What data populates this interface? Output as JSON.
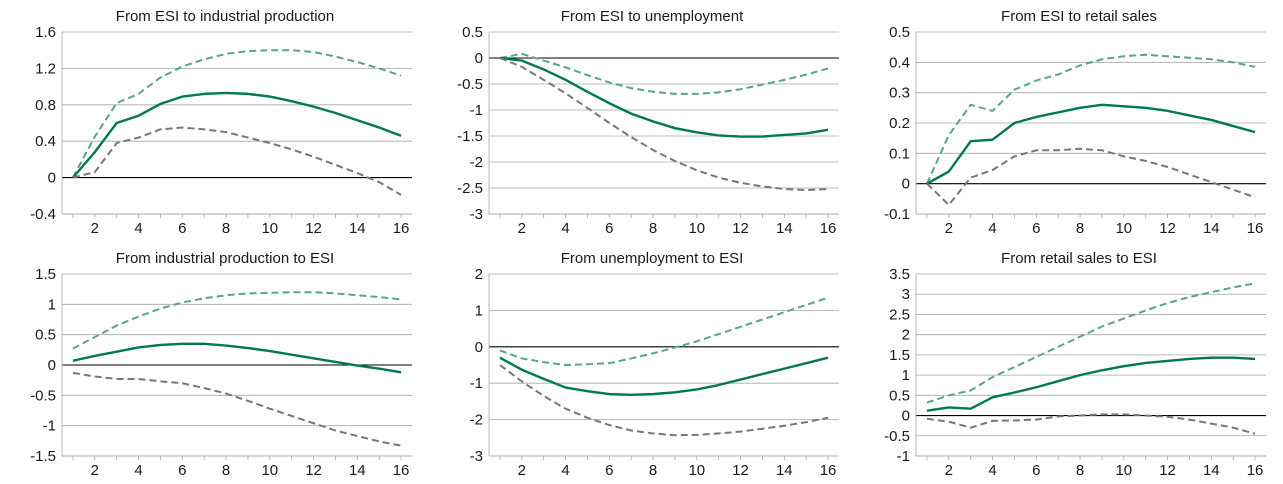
{
  "chart_data": [
    {
      "type": "line",
      "title": "From ESI to industrial production",
      "x": [
        1,
        2,
        3,
        4,
        5,
        6,
        7,
        8,
        9,
        10,
        11,
        12,
        13,
        14,
        15,
        16
      ],
      "ylim": [
        -0.4,
        1.6
      ],
      "yticks": [
        -0.4,
        0,
        0.4,
        0.8,
        1.2,
        1.6
      ],
      "ytick_labels": [
        "-0.4",
        "0",
        "0.4",
        "0.8",
        "1.2",
        "1.6"
      ],
      "xticks": [
        2,
        4,
        6,
        8,
        10,
        12,
        14,
        16
      ],
      "xtick_labels": [
        "2",
        "4",
        "6",
        "8",
        "10",
        "12",
        "14",
        "16"
      ],
      "series": [
        {
          "style": "upper",
          "values": [
            0,
            0.45,
            0.82,
            0.92,
            1.1,
            1.22,
            1.3,
            1.36,
            1.39,
            1.4,
            1.4,
            1.38,
            1.33,
            1.27,
            1.2,
            1.12
          ]
        },
        {
          "style": "central",
          "values": [
            0,
            0.28,
            0.6,
            0.68,
            0.81,
            0.89,
            0.92,
            0.93,
            0.92,
            0.89,
            0.84,
            0.78,
            0.71,
            0.63,
            0.55,
            0.46
          ]
        },
        {
          "style": "lower",
          "values": [
            0,
            0.06,
            0.38,
            0.44,
            0.53,
            0.55,
            0.53,
            0.5,
            0.44,
            0.38,
            0.31,
            0.23,
            0.14,
            0.05,
            -0.05,
            -0.19
          ]
        }
      ]
    },
    {
      "type": "line",
      "title": "From ESI to unemployment",
      "x": [
        1,
        2,
        3,
        4,
        5,
        6,
        7,
        8,
        9,
        10,
        11,
        12,
        13,
        14,
        15,
        16
      ],
      "ylim": [
        -3,
        0.5
      ],
      "yticks": [
        -3,
        -2.5,
        -2,
        -1.5,
        -1,
        -0.5,
        0,
        0.5
      ],
      "ytick_labels": [
        "-3",
        "-2.5",
        "-2",
        "-1.5",
        "-1",
        "-0.5",
        "0",
        "0.5"
      ],
      "xticks": [
        2,
        4,
        6,
        8,
        10,
        12,
        14,
        16
      ],
      "xtick_labels": [
        "2",
        "4",
        "6",
        "8",
        "10",
        "12",
        "14",
        "16"
      ],
      "series": [
        {
          "style": "upper",
          "values": [
            0,
            0.08,
            -0.05,
            -0.18,
            -0.33,
            -0.47,
            -0.58,
            -0.65,
            -0.69,
            -0.69,
            -0.66,
            -0.6,
            -0.51,
            -0.42,
            -0.32,
            -0.2
          ]
        },
        {
          "style": "central",
          "values": [
            0,
            -0.05,
            -0.22,
            -0.42,
            -0.65,
            -0.87,
            -1.07,
            -1.22,
            -1.35,
            -1.43,
            -1.49,
            -1.51,
            -1.51,
            -1.48,
            -1.45,
            -1.38
          ]
        },
        {
          "style": "lower",
          "values": [
            0,
            -0.17,
            -0.42,
            -0.68,
            -0.96,
            -1.25,
            -1.52,
            -1.77,
            -1.98,
            -2.16,
            -2.3,
            -2.4,
            -2.47,
            -2.52,
            -2.54,
            -2.52
          ]
        }
      ]
    },
    {
      "type": "line",
      "title": "From ESI to retail sales",
      "x": [
        1,
        2,
        3,
        4,
        5,
        6,
        7,
        8,
        9,
        10,
        11,
        12,
        13,
        14,
        15,
        16
      ],
      "ylim": [
        -0.1,
        0.5
      ],
      "yticks": [
        -0.1,
        0,
        0.1,
        0.2,
        0.3,
        0.4,
        0.5
      ],
      "ytick_labels": [
        "-0.1",
        "0",
        "0.1",
        "0.2",
        "0.3",
        "0.4",
        "0.5"
      ],
      "xticks": [
        2,
        4,
        6,
        8,
        10,
        12,
        14,
        16
      ],
      "xtick_labels": [
        "2",
        "4",
        "6",
        "8",
        "10",
        "12",
        "14",
        "16"
      ],
      "series": [
        {
          "style": "upper",
          "values": [
            0,
            0.16,
            0.26,
            0.24,
            0.31,
            0.34,
            0.36,
            0.39,
            0.41,
            0.42,
            0.425,
            0.42,
            0.415,
            0.41,
            0.4,
            0.385
          ]
        },
        {
          "style": "central",
          "values": [
            0,
            0.04,
            0.14,
            0.145,
            0.2,
            0.22,
            0.235,
            0.25,
            0.26,
            0.255,
            0.25,
            0.24,
            0.225,
            0.21,
            0.19,
            0.17
          ]
        },
        {
          "style": "lower",
          "values": [
            0,
            -0.07,
            0.02,
            0.045,
            0.09,
            0.11,
            0.11,
            0.115,
            0.11,
            0.09,
            0.075,
            0.055,
            0.03,
            0.005,
            -0.02,
            -0.045
          ]
        }
      ]
    },
    {
      "type": "line",
      "title": "From industrial production to ESI",
      "x": [
        1,
        2,
        3,
        4,
        5,
        6,
        7,
        8,
        9,
        10,
        11,
        12,
        13,
        14,
        15,
        16
      ],
      "ylim": [
        -1.5,
        1.5
      ],
      "yticks": [
        -1.5,
        -1,
        -0.5,
        0,
        0.5,
        1,
        1.5
      ],
      "ytick_labels": [
        "-1.5",
        "-1",
        "-0.5",
        "0",
        "0.5",
        "1",
        "1.5"
      ],
      "xticks": [
        2,
        4,
        6,
        8,
        10,
        12,
        14,
        16
      ],
      "xtick_labels": [
        "2",
        "4",
        "6",
        "8",
        "10",
        "12",
        "14",
        "16"
      ],
      "series": [
        {
          "style": "upper",
          "values": [
            0.27,
            0.46,
            0.65,
            0.8,
            0.93,
            1.03,
            1.1,
            1.15,
            1.18,
            1.19,
            1.2,
            1.2,
            1.18,
            1.15,
            1.12,
            1.08
          ]
        },
        {
          "style": "central",
          "values": [
            0.07,
            0.15,
            0.22,
            0.29,
            0.33,
            0.35,
            0.35,
            0.32,
            0.28,
            0.23,
            0.17,
            0.11,
            0.05,
            -0.01,
            -0.06,
            -0.12
          ]
        },
        {
          "style": "lower",
          "values": [
            -0.13,
            -0.19,
            -0.23,
            -0.23,
            -0.27,
            -0.3,
            -0.38,
            -0.47,
            -0.59,
            -0.72,
            -0.84,
            -0.96,
            -1.08,
            -1.17,
            -1.26,
            -1.33
          ]
        }
      ]
    },
    {
      "type": "line",
      "title": "From unemployment to ESI",
      "x": [
        1,
        2,
        3,
        4,
        5,
        6,
        7,
        8,
        9,
        10,
        11,
        12,
        13,
        14,
        15,
        16
      ],
      "ylim": [
        -3,
        2
      ],
      "yticks": [
        -3,
        -2,
        -1,
        0,
        1,
        2
      ],
      "ytick_labels": [
        "-3",
        "-2",
        "-1",
        "0",
        "1",
        "2"
      ],
      "xticks": [
        2,
        4,
        6,
        8,
        10,
        12,
        14,
        16
      ],
      "xtick_labels": [
        "2",
        "4",
        "6",
        "8",
        "10",
        "12",
        "14",
        "16"
      ],
      "series": [
        {
          "style": "upper",
          "values": [
            -0.1,
            -0.32,
            -0.42,
            -0.5,
            -0.48,
            -0.45,
            -0.32,
            -0.18,
            -0.02,
            0.15,
            0.35,
            0.55,
            0.75,
            0.95,
            1.15,
            1.35
          ]
        },
        {
          "style": "central",
          "values": [
            -0.3,
            -0.63,
            -0.88,
            -1.12,
            -1.22,
            -1.3,
            -1.32,
            -1.3,
            -1.25,
            -1.17,
            -1.05,
            -0.9,
            -0.75,
            -0.6,
            -0.45,
            -0.3
          ]
        },
        {
          "style": "lower",
          "values": [
            -0.5,
            -0.95,
            -1.35,
            -1.7,
            -1.95,
            -2.15,
            -2.3,
            -2.38,
            -2.43,
            -2.42,
            -2.38,
            -2.33,
            -2.25,
            -2.17,
            -2.07,
            -1.95
          ]
        }
      ]
    },
    {
      "type": "line",
      "title": "From retail sales to ESI",
      "x": [
        1,
        2,
        3,
        4,
        5,
        6,
        7,
        8,
        9,
        10,
        11,
        12,
        13,
        14,
        15,
        16
      ],
      "ylim": [
        -1,
        3.5
      ],
      "yticks": [
        -1,
        -0.5,
        0,
        0.5,
        1,
        1.5,
        2,
        2.5,
        3,
        3.5
      ],
      "ytick_labels": [
        "-1",
        "-0.5",
        "0",
        "0.5",
        "1",
        "1.5",
        "2",
        "2.5",
        "3",
        "3.5"
      ],
      "xticks": [
        2,
        4,
        6,
        8,
        10,
        12,
        14,
        16
      ],
      "xtick_labels": [
        "2",
        "4",
        "6",
        "8",
        "10",
        "12",
        "14",
        "16"
      ],
      "series": [
        {
          "style": "upper",
          "values": [
            0.32,
            0.5,
            0.62,
            0.95,
            1.2,
            1.45,
            1.7,
            1.95,
            2.2,
            2.4,
            2.6,
            2.78,
            2.93,
            3.05,
            3.17,
            3.27
          ]
        },
        {
          "style": "central",
          "values": [
            0.12,
            0.2,
            0.17,
            0.45,
            0.57,
            0.7,
            0.85,
            1.0,
            1.12,
            1.22,
            1.3,
            1.35,
            1.4,
            1.43,
            1.43,
            1.4
          ]
        },
        {
          "style": "lower",
          "values": [
            -0.08,
            -0.15,
            -0.3,
            -0.13,
            -0.12,
            -0.1,
            -0.02,
            0.0,
            0.03,
            0.03,
            0.0,
            -0.03,
            -0.1,
            -0.2,
            -0.3,
            -0.45
          ]
        }
      ]
    }
  ],
  "colors": {
    "central": "#007a4d",
    "upper": "#5aa488",
    "lower": "#777777",
    "grid": "#a6a6a6",
    "zero_line": "#000000",
    "text": "#1a1a1a"
  }
}
